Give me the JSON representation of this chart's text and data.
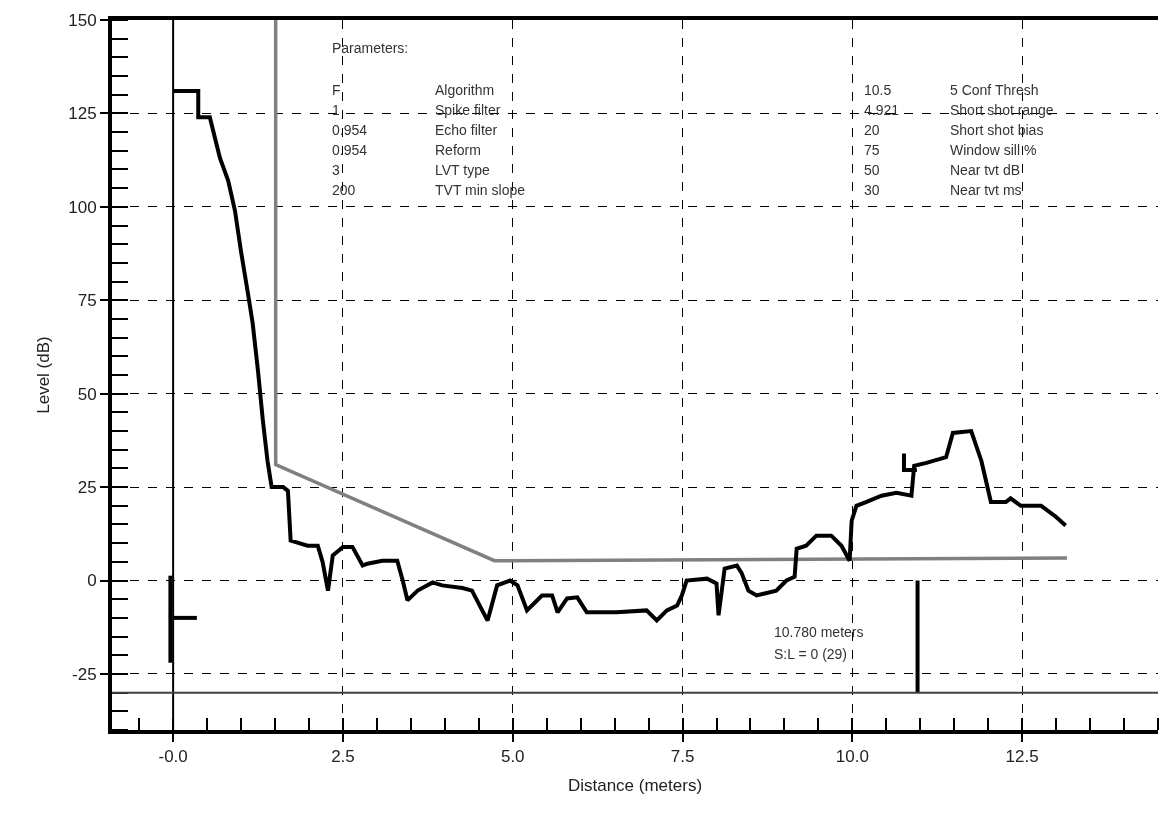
{
  "chart_data": {
    "type": "line",
    "xlabel": "Distance (meters)",
    "ylabel": "Level (dB)",
    "xlim": [
      -0.9,
      14.5
    ],
    "ylim": [
      -40,
      150
    ],
    "xticks": [
      {
        "value": 0,
        "label": "-0.0"
      },
      2.5,
      {
        "value": 5,
        "label": "5.0"
      },
      7.5,
      {
        "value": 10,
        "label": "10.0"
      },
      12.5
    ],
    "yticks": [
      -25,
      0,
      25,
      50,
      75,
      100,
      125,
      150
    ],
    "grid": true,
    "marker": "none",
    "line_style": "solid",
    "series": [
      {
        "color": "#808080",
        "x": [
          1.51,
          1.51,
          4.73,
          13.16
        ],
        "values": [
          150,
          31,
          5.3,
          6
        ]
      },
      {
        "color": "#000000",
        "x": [
          0,
          0.37,
          0.37,
          0.54,
          0.69,
          0.81,
          0.91,
          1.0,
          1.1,
          1.17,
          1.25,
          1.32,
          1.39,
          1.45,
          1.54,
          1.62,
          1.69,
          1.73,
          1.98,
          2.13,
          2.2,
          2.28,
          2.35,
          2.5,
          2.64,
          2.79,
          2.86,
          3.08,
          3.3,
          3.38,
          3.45,
          3.6,
          3.82,
          3.96,
          4.26,
          4.4,
          4.55,
          4.63,
          4.77,
          4.96,
          5.07,
          5.21,
          5.43,
          5.58,
          5.66,
          5.8,
          5.95,
          6.09,
          6.53,
          6.97,
          7.12,
          7.27,
          7.42,
          7.49,
          7.56,
          7.86,
          8.0,
          8.03,
          8.12,
          8.3,
          8.37,
          8.47,
          8.59,
          8.88,
          9.03,
          9.15,
          9.18,
          9.32,
          9.47,
          9.69,
          9.84,
          9.96,
          9.99,
          10.06,
          10.2,
          10.43,
          10.65,
          10.87,
          10.91,
          11.09,
          11.38,
          11.48,
          11.75,
          11.9,
          12.04,
          12.26,
          12.33,
          12.48,
          12.78,
          13.0,
          13.14
        ],
        "values": [
          131,
          131,
          124,
          124,
          113,
          107,
          99,
          88,
          77,
          69,
          56,
          43,
          32,
          25,
          25,
          25,
          24,
          10.7,
          9.3,
          9.3,
          5,
          -2.7,
          6.7,
          9,
          9,
          4,
          4.5,
          5.3,
          5.3,
          0,
          -5.3,
          -2.7,
          -0.5,
          -1.3,
          -2,
          -2.7,
          -8,
          -10.7,
          -1.3,
          0,
          -1.3,
          -8,
          -4,
          -4,
          -8.5,
          -4.8,
          -4.5,
          -8.5,
          -8.5,
          -8,
          -10.7,
          -8,
          -6.7,
          -4,
          0,
          0.5,
          -0.8,
          -9.3,
          3.2,
          4,
          2,
          -2.7,
          -4,
          -2.7,
          0,
          1,
          8.5,
          9.3,
          12,
          12,
          9.3,
          5.3,
          16,
          20,
          21,
          22.7,
          23.5,
          22.7,
          30.7,
          31.5,
          33,
          39.5,
          40,
          32,
          21,
          21,
          22,
          20,
          20,
          17,
          14.7
        ]
      },
      {
        "color": "#000000",
        "x": [
          10.76,
          10.76,
          10.95
        ],
        "values": [
          34,
          29.6,
          29.6
        ]
      },
      {
        "color": "#000000",
        "x": [
          -0.04,
          -0.04
        ],
        "values": [
          1.3,
          -22
        ]
      },
      {
        "color": "#000000",
        "x": [
          0,
          0.35
        ],
        "values": [
          -10,
          -10
        ]
      },
      {
        "color": "#000000",
        "x": [
          10.96,
          10.96
        ],
        "values": [
          0,
          -30
        ]
      }
    ],
    "ref_lines": [
      {
        "axis": "x",
        "value": 0,
        "color": "#000000"
      },
      {
        "axis": "y",
        "value": -30,
        "color": "#404040"
      }
    ],
    "annotations": [
      "Parameters:",
      "F",
      "Algorithm",
      "10.5",
      "5 Conf Thresh",
      "1",
      "Spike filter",
      "4.921",
      "Short shot range",
      "0.954",
      "Echo filter",
      "20",
      "Short shot bias",
      "0.954",
      "Reform",
      "75",
      "Window sill %",
      "3",
      "LVT type",
      "50",
      "Near tvt dB",
      "200",
      "TVT min slope",
      "30",
      "Near tvt ms",
      "10.780 meters",
      "S:L = 0 (29)"
    ]
  }
}
